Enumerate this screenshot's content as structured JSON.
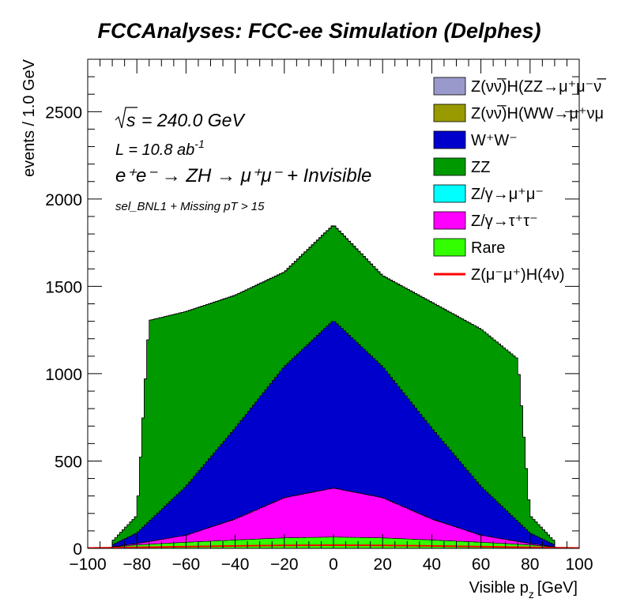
{
  "chart_data": {
    "type": "stacked-histogram",
    "title": "FCCAnalyses: FCC-ee Simulation (Delphes)",
    "xlabel": "Visible p_z [GeV]",
    "xlabel_main": "Visible p",
    "xlabel_sub": "z",
    "xlabel_unit": "[GeV]",
    "ylabel": "events / 1.0 GeV",
    "xlim": [
      -100,
      100
    ],
    "ylim": [
      0,
      2800
    ],
    "bin_width": 1.0,
    "x_ticks": [
      "−100",
      "−80",
      "−60",
      "−40",
      "−20",
      "0",
      "20",
      "40",
      "60",
      "80",
      "100"
    ],
    "y_ticks": [
      "0",
      "500",
      "1000",
      "1500",
      "2000",
      "2500"
    ],
    "annotations": {
      "sqrt_s": "= 240.0 GeV",
      "lumi": "L = 10.8 ab",
      "lumi_exp": "-1",
      "process": "e⁺e⁻ → ZH → μ⁺μ⁻ + Invisible",
      "selection": "sel_BNL1 + Missing pT > 15"
    },
    "series": [
      {
        "name": "Rare",
        "color": "#33ff00",
        "values_at_x": {
          "x": [
            -90,
            -80,
            -60,
            -40,
            -20,
            0,
            20,
            40,
            60,
            80,
            90
          ],
          "y": [
            8,
            20,
            35,
            48,
            60,
            65,
            60,
            48,
            35,
            20,
            8
          ]
        }
      },
      {
        "name": "Z/γ→τ⁺τ⁻",
        "color": "#ff00ff",
        "values_at_x": {
          "x": [
            -90,
            -80,
            -60,
            -40,
            -20,
            0,
            20,
            40,
            60,
            80,
            90
          ],
          "y": [
            2,
            8,
            40,
            120,
            230,
            280,
            230,
            120,
            40,
            8,
            2
          ]
        }
      },
      {
        "name": "Z/γ→μ⁺μ⁻",
        "color": "#00ffff",
        "values_at_x": {
          "x": [
            -90,
            0,
            90
          ],
          "y": [
            0,
            1,
            0
          ]
        }
      },
      {
        "name": "W⁺W⁻",
        "color": "#0000cc",
        "values_at_x": {
          "x": [
            -90,
            -80,
            -60,
            -40,
            -20,
            0,
            20,
            40,
            60,
            80,
            90
          ],
          "y": [
            10,
            60,
            280,
            520,
            750,
            960,
            750,
            520,
            280,
            60,
            10
          ]
        }
      },
      {
        "name": "ZZ",
        "color": "#009900",
        "values_at_x": {
          "x": [
            -90,
            -80,
            -75,
            -60,
            -40,
            -20,
            0,
            20,
            40,
            60,
            75,
            80,
            90
          ],
          "y": [
            20,
            100,
            1150,
            1000,
            760,
            540,
            545,
            520,
            720,
            900,
            930,
            100,
            20
          ]
        }
      },
      {
        "name": "Z(νν̅)H(WW→μ⁺νμ⁻ν)",
        "color": "#999900",
        "values_at_x": {
          "x": [
            -90,
            0,
            90
          ],
          "y": [
            0,
            2,
            0
          ]
        }
      },
      {
        "name": "Z(νν̅)H(ZZ→μ⁺μ⁻νν)",
        "color": "#9999cc",
        "values_at_x": {
          "x": [
            -90,
            0,
            90
          ],
          "y": [
            0,
            1,
            0
          ]
        }
      }
    ],
    "signal_line": {
      "name": "Z(μ⁻μ⁺)H(4ν)",
      "color": "#ff0000",
      "values_at_x": {
        "x": [
          -100,
          -80,
          -60,
          -40,
          -20,
          0,
          20,
          40,
          60,
          80,
          100
        ],
        "y": [
          2,
          6,
          10,
          14,
          17,
          18,
          17,
          14,
          10,
          6,
          2
        ]
      }
    },
    "legend": [
      {
        "label": "Z(νν̅)H(ZZ→μ⁺μ⁻ν̅",
        "color": "#9999cc",
        "style": "box"
      },
      {
        "label": "Z(νν̅)H(WW→μ⁺νμ",
        "color": "#999900",
        "style": "box"
      },
      {
        "label": "W⁺W⁻",
        "color": "#0000cc",
        "style": "box"
      },
      {
        "label": "ZZ",
        "color": "#009900",
        "style": "box"
      },
      {
        "label": "Z/γ→μ⁺μ⁻",
        "color": "#00ffff",
        "style": "box"
      },
      {
        "label": "Z/γ→τ⁺τ⁻",
        "color": "#ff00ff",
        "style": "box"
      },
      {
        "label": "Rare",
        "color": "#33ff00",
        "style": "box"
      },
      {
        "label": "Z(μ⁻μ⁺)H(4ν)",
        "color": "#ff0000",
        "style": "line"
      }
    ],
    "legend_position": "top-right",
    "grid": false
  }
}
